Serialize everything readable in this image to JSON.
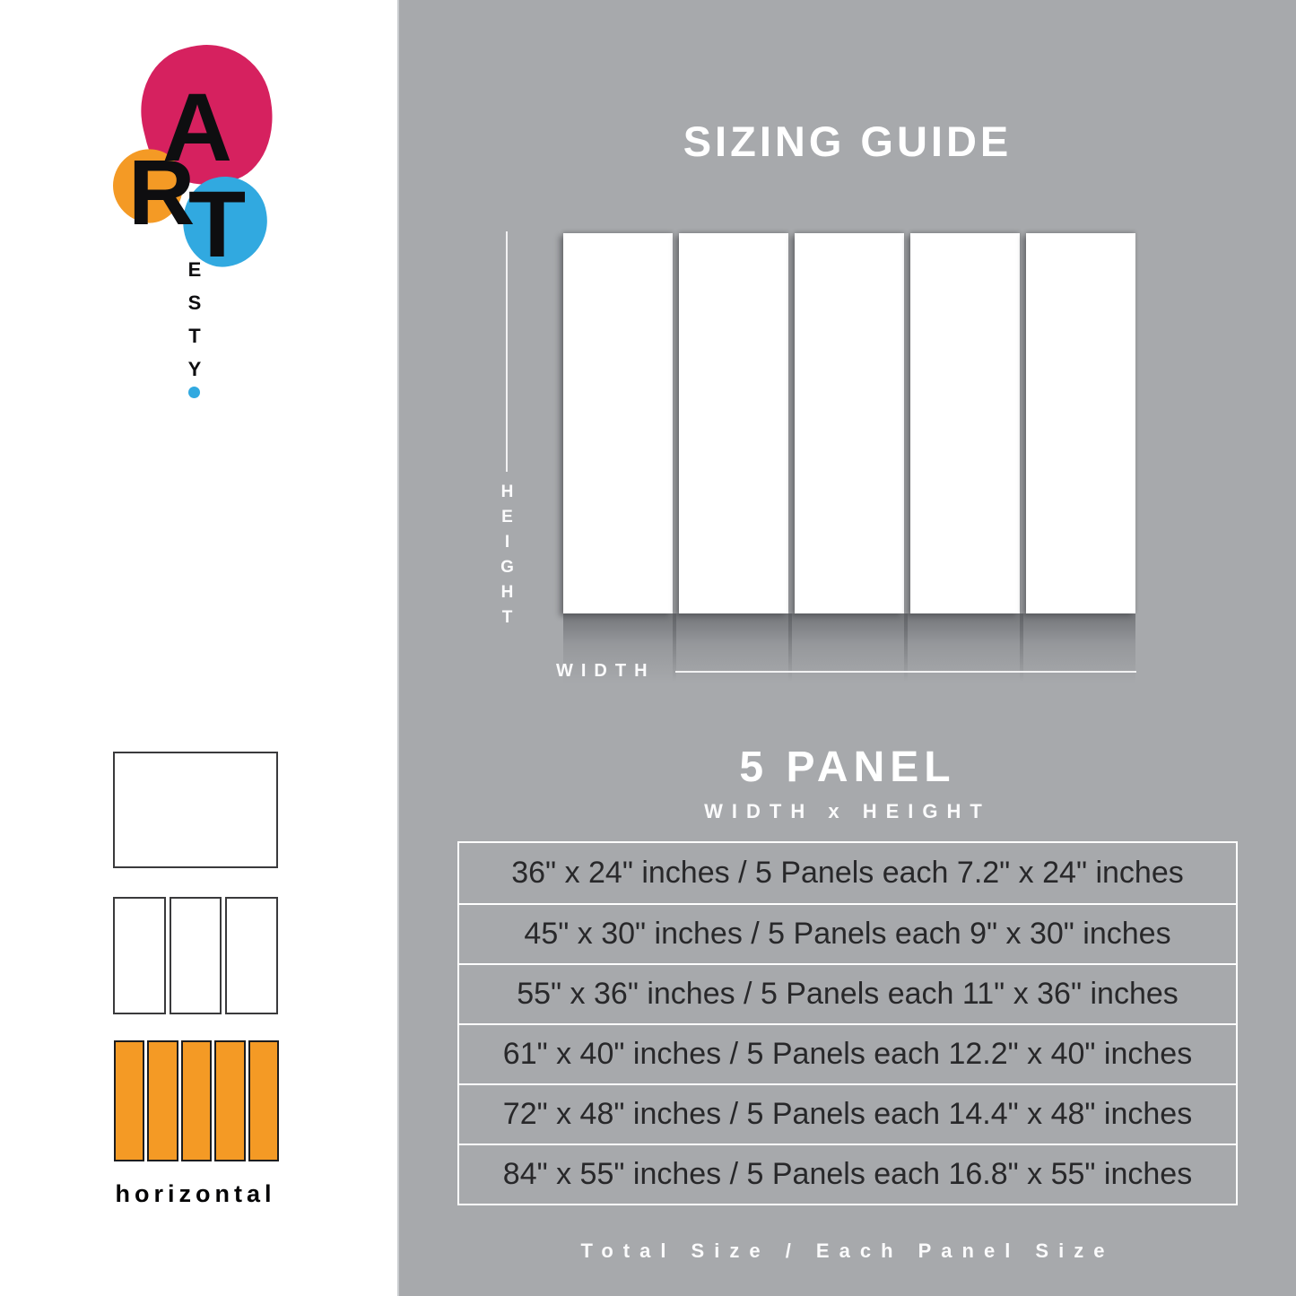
{
  "brand": {
    "letters": [
      "A",
      "R",
      "T"
    ],
    "vertical_letters": [
      "E",
      "S",
      "T",
      "Y"
    ],
    "colors": {
      "pink": "#d6215f",
      "orange": "#f49a25",
      "blue": "#31a9e0"
    }
  },
  "sidebar": {
    "orientation_label": "horizontal",
    "panel_fill_color": "#f49a25"
  },
  "guide": {
    "title": "SIZING GUIDE",
    "height_label": "HEIGHT",
    "width_label": "WIDTH",
    "panel_heading": "5 PANEL",
    "dimension_note": "WIDTH x HEIGHT",
    "background_color": "#a7a9ac",
    "table_rows": [
      "36\" x 24\" inches / 5 Panels each 7.2\" x 24\" inches",
      "45\" x 30\" inches / 5 Panels each 9\" x 30\" inches",
      "55\" x 36\" inches / 5 Panels each 11\" x 36\" inches",
      "61\" x 40\" inches / 5 Panels each 12.2\" x 40\" inches",
      "72\" x 48\" inches / 5 Panels each 14.4\" x 48\" inches",
      "84\" x 55\" inches / 5 Panels each 16.8\" x 55\" inches"
    ],
    "footer_note": "Total Size / Each Panel Size"
  }
}
